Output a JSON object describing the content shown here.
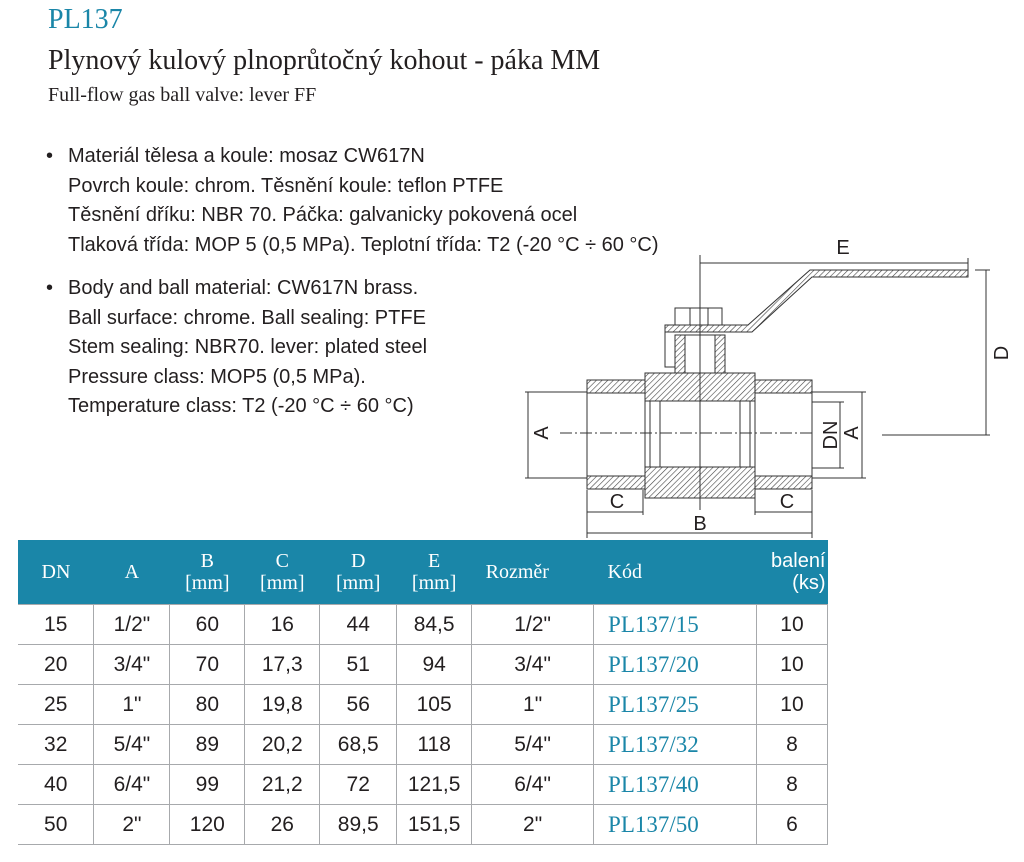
{
  "header": {
    "code": "PL137",
    "title": "Plynový kulový plnoprůtočný kohout - páka MM",
    "subtitle": "Full-flow gas ball valve: lever FF"
  },
  "specs_cz": [
    "Materiál tělesa a koule: mosaz CW617N",
    "Povrch koule: chrom. Těsnění koule: teflon PTFE",
    "Těsnění dříku: NBR 70.  Páčka: galvanicky pokovená ocel",
    "Tlaková třída: MOP 5 (0,5 MPa). Teplotní třída: T2 (-20 °C ÷ 60 °C)"
  ],
  "specs_en": [
    "Body and ball material: CW617N brass.",
    "Ball surface: chrome. Ball sealing: PTFE",
    "Stem sealing: NBR70. lever: plated steel",
    "Pressure class: MOP5 (0,5 MPa).",
    "Temperature class: T2 (-20 °C ÷ 60 °C)"
  ],
  "bullet": "•",
  "drawing_labels": {
    "E": "E",
    "D": "D",
    "A": "A",
    "DN": "DN",
    "B": "B",
    "C": "C"
  },
  "table": {
    "headers": [
      [
        "DN",
        ""
      ],
      [
        "A",
        ""
      ],
      [
        "B",
        "[mm]"
      ],
      [
        "C",
        "[mm]"
      ],
      [
        "D",
        "[mm]"
      ],
      [
        "E",
        "[mm]"
      ],
      [
        "Rozměr",
        ""
      ],
      [
        "Kód",
        ""
      ],
      [
        "balení",
        "(ks)"
      ]
    ],
    "rows": [
      [
        "15",
        "1/2\"",
        "60",
        "16",
        "44",
        "84,5",
        "1/2\"",
        "PL137/15",
        "10"
      ],
      [
        "20",
        "3/4\"",
        "70",
        "17,3",
        "51",
        "94",
        "3/4\"",
        "PL137/20",
        "10"
      ],
      [
        "25",
        "1\"",
        "80",
        "19,8",
        "56",
        "105",
        "1\"",
        "PL137/25",
        "10"
      ],
      [
        "32",
        "5/4\"",
        "89",
        "20,2",
        "68,5",
        "118",
        "5/4\"",
        "PL137/32",
        "8"
      ],
      [
        "40",
        "6/4\"",
        "99",
        "21,2",
        "72",
        "121,5",
        "6/4\"",
        "PL137/40",
        "8"
      ],
      [
        "50",
        "2\"",
        "120",
        "26",
        "89,5",
        "151,5",
        "2\"",
        "PL137/50",
        "6"
      ]
    ]
  },
  "colors": {
    "accent": "#1a86a8",
    "text": "#231f20",
    "grid": "#a7a9ac"
  }
}
